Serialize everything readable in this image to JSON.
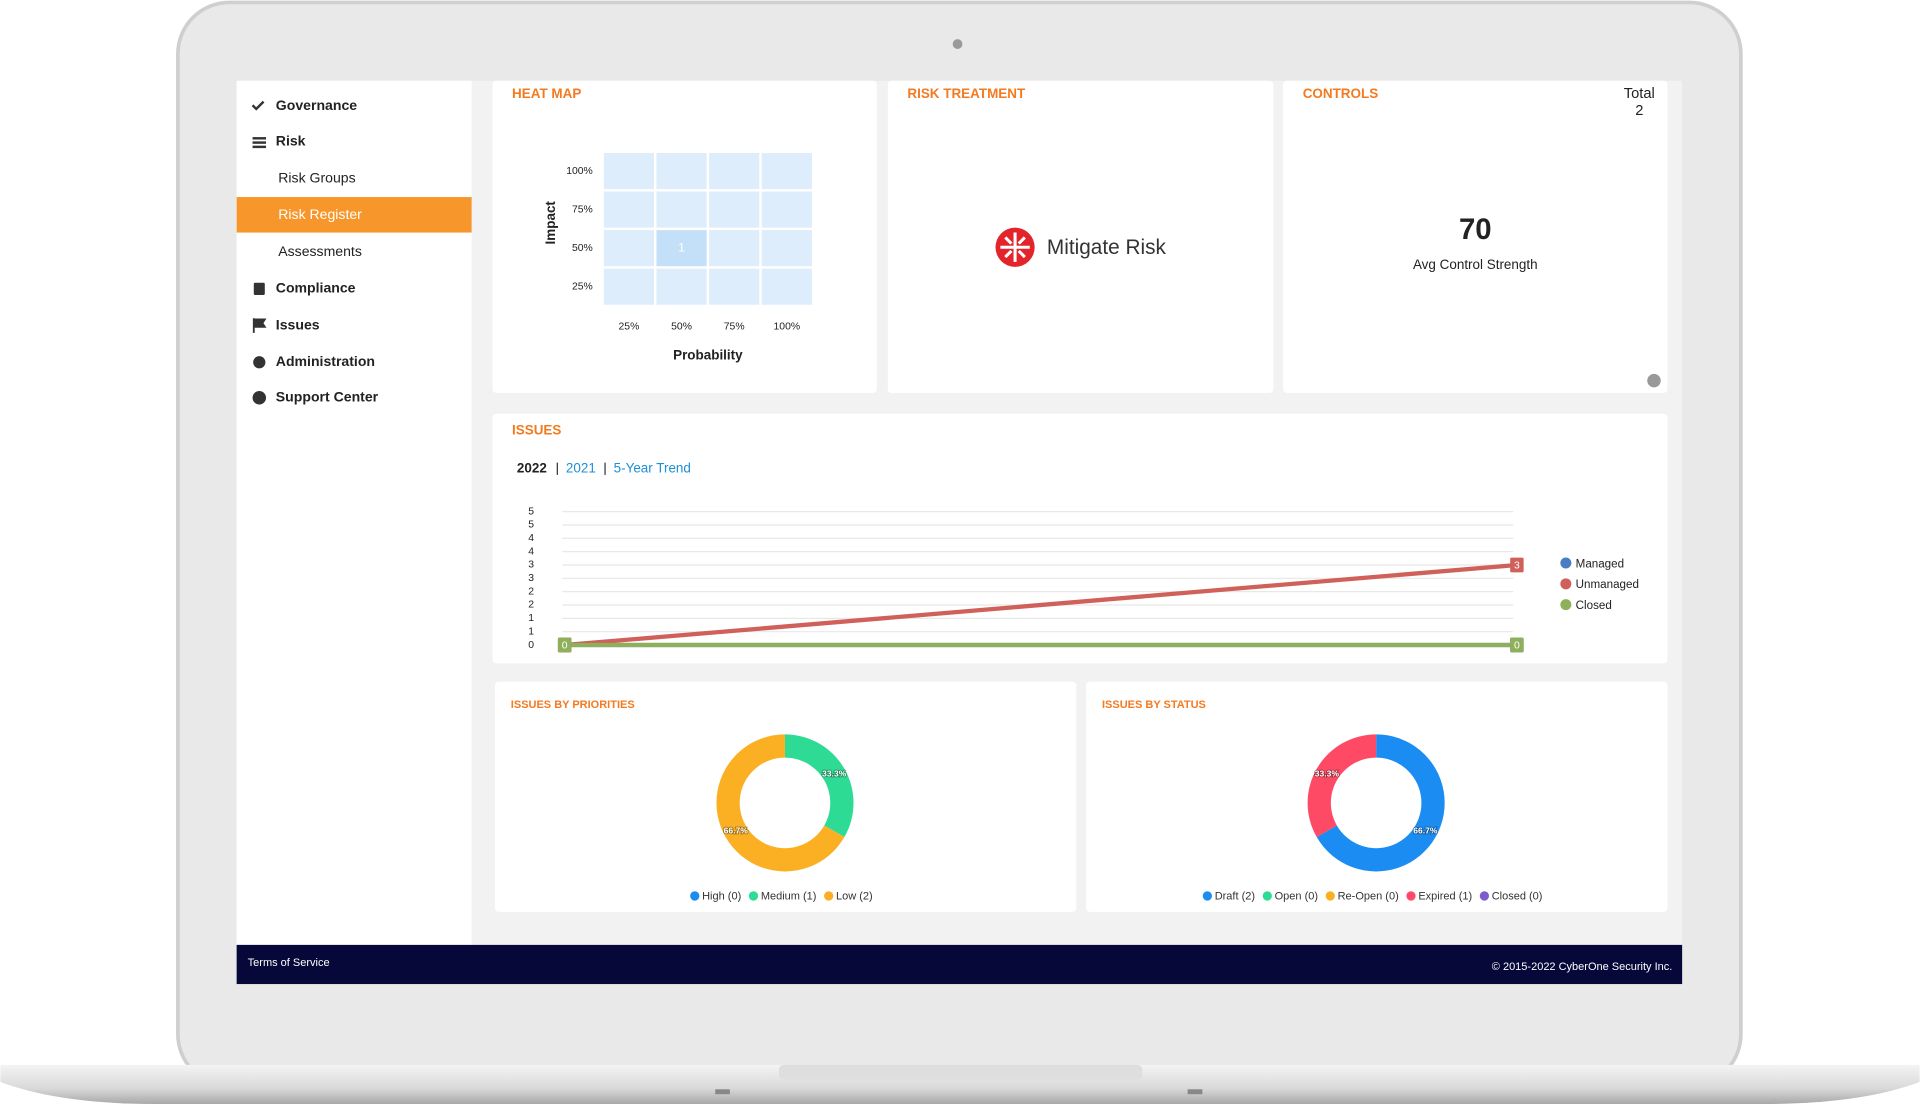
{
  "sidebar": {
    "items": [
      "Governance",
      "Risk",
      "Risk Groups",
      "Risk Register",
      "Assessments",
      "Compliance",
      "Issues",
      "Administration",
      "Support Center"
    ]
  },
  "risk_treatment": {
    "title": "RISK TREATMENT",
    "label": "Mitigate Risk"
  },
  "controls": {
    "title": "CONTROLS",
    "total_label": "Total",
    "total": 2,
    "value": 70,
    "value_label": "Avg Control Strength"
  },
  "issues_tabs": [
    "2022",
    "2021",
    "5-Year Trend"
  ],
  "footer": {
    "left": "Terms of Service",
    "right": "© 2015-2022 CyberOne Security Inc."
  },
  "chart_data": [
    {
      "type": "heatmap",
      "title": "HEAT MAP",
      "xlabel": "Probability",
      "ylabel": "Impact",
      "x": [
        "25%",
        "50%",
        "75%",
        "100%"
      ],
      "y": [
        "100%",
        "75%",
        "50%",
        "25%"
      ],
      "values": [
        [
          null,
          null,
          null,
          null
        ],
        [
          null,
          null,
          null,
          null
        ],
        [
          null,
          1,
          null,
          null
        ],
        [
          null,
          null,
          null,
          null
        ]
      ],
      "color": "#c4e0f8"
    },
    {
      "type": "line",
      "title": "ISSUES",
      "categories": [
        null,
        null
      ],
      "ylim": [
        0,
        5
      ],
      "yticks": [
        5,
        {
          "value": 4.5,
          "label": "5"
        },
        4,
        {
          "value": 3.5,
          "label": "4"
        },
        3,
        {
          "value": 2.5,
          "label": "3"
        },
        2,
        {
          "value": 1.5,
          "label": "2"
        },
        1,
        {
          "value": 0.5,
          "label": "1"
        },
        0
      ],
      "grid": true,
      "legend": "right",
      "series": [
        {
          "name": "Managed",
          "color": "#4a7ec4",
          "values": [
            0,
            0
          ]
        },
        {
          "name": "Unmanaged",
          "color": "#d0605a",
          "values": [
            0,
            3
          ]
        },
        {
          "name": "Closed",
          "color": "#8fb05a",
          "values": [
            0,
            0
          ]
        }
      ]
    },
    {
      "type": "donut",
      "title": "ISSUES BY PRIORITIES",
      "values": [
        0,
        33.3,
        66.7
      ],
      "value_labels": [
        null,
        "33.3%",
        "66.7%"
      ],
      "legend_labels": [
        "High (0)",
        "Medium (1)",
        "Low (2)"
      ],
      "colors": [
        "#1b8cf2",
        "#2edb95",
        "#fbb024"
      ]
    },
    {
      "type": "donut",
      "title": "ISSUES BY STATUS",
      "values": [
        66.7,
        0,
        0,
        33.3,
        0
      ],
      "value_labels": [
        "66.7%",
        null,
        null,
        "33.3%",
        null
      ],
      "legend_labels": [
        "Draft (2)",
        "Open (0)",
        "Re-Open (0)",
        "Expired (1)",
        "Closed (0)"
      ],
      "colors": [
        "#1b8cf2",
        "#2edb95",
        "#fbb024",
        "#ff4a66",
        "#7e5ccc"
      ]
    }
  ]
}
